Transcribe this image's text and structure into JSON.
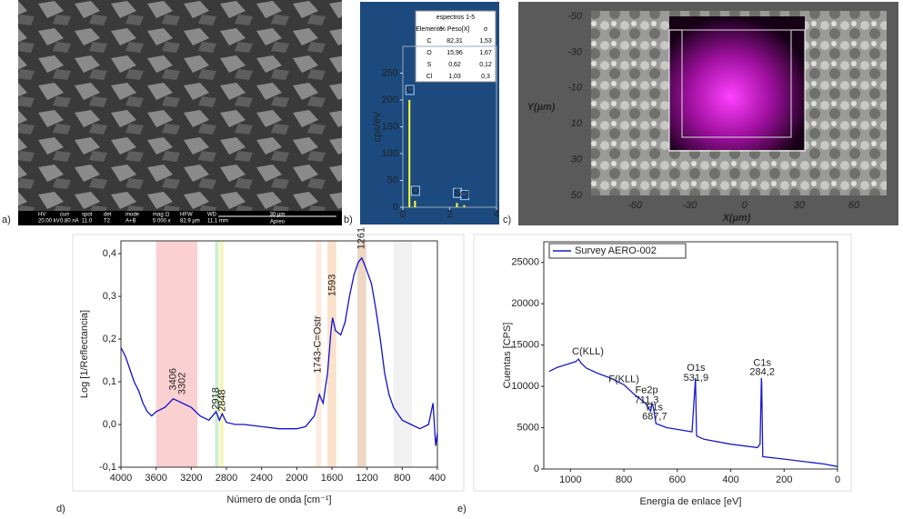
{
  "panels": [
    "a)",
    "b)",
    "c)",
    "d)",
    "e)"
  ],
  "sem": {
    "fields": [
      [
        "HV",
        "20.00 kV"
      ],
      [
        "curr",
        "0.80 nA"
      ],
      [
        "spot",
        "11.0"
      ],
      [
        "det",
        "T2"
      ],
      [
        "mode",
        "A+B"
      ],
      [
        "mag ⊡",
        "5 000 x"
      ],
      [
        "HFW",
        "82.9 µm"
      ],
      [
        "WD",
        "11.1 mm"
      ]
    ],
    "scale": "30 µm",
    "brand": "Apreo"
  },
  "eds": {
    "table_title": "espectros 1-5",
    "headers": [
      "Elemento",
      "% Peso[X]",
      "σ"
    ],
    "rows": [
      [
        "C",
        "82,31",
        "1,53"
      ],
      [
        "O",
        "15,96",
        "1,67"
      ],
      [
        "S",
        "0,62",
        "0,12"
      ],
      [
        "Cl",
        "1,03",
        "0,3"
      ]
    ]
  },
  "map": {
    "xlabel": "X(µm)",
    "ylabel": "Y(µm)",
    "xticks": [
      -60,
      -30,
      0,
      30,
      60
    ],
    "yticks": [
      -50,
      -30,
      -10,
      10,
      30,
      50
    ]
  },
  "chart_data": [
    {
      "type": "stem",
      "ylabel": "cps/eV",
      "x": [
        0.28,
        0.52,
        2.31,
        2.62
      ],
      "values": [
        200,
        12,
        8,
        4
      ],
      "point_labels": [
        "C",
        "O",
        "S",
        "Cl"
      ],
      "color": "#ffff33",
      "xlim": [
        0,
        4
      ],
      "ylim": [
        0,
        300
      ],
      "xticks": [
        0,
        2,
        4
      ],
      "yticks": [
        0,
        50,
        100,
        150,
        200,
        250
      ]
    },
    {
      "type": "line",
      "xlabel": "Número de onda  [cm⁻¹]",
      "ylabel": "Log  [1/Reflectancia]",
      "x": [
        4000,
        3950,
        3900,
        3850,
        3800,
        3750,
        3700,
        3650,
        3600,
        3500,
        3406,
        3350,
        3302,
        3200,
        3100,
        3000,
        2918,
        2880,
        2848,
        2800,
        2700,
        2600,
        2400,
        2200,
        2000,
        1900,
        1800,
        1743,
        1700,
        1650,
        1610,
        1593,
        1560,
        1500,
        1450,
        1400,
        1350,
        1300,
        1261,
        1220,
        1150,
        1100,
        1050,
        1000,
        950,
        900,
        800,
        700,
        600,
        500,
        450,
        420,
        400
      ],
      "series": [
        {
          "color": "#1010d0",
          "values": [
            0.18,
            0.16,
            0.13,
            0.1,
            0.08,
            0.05,
            0.03,
            0.02,
            0.03,
            0.04,
            0.06,
            0.055,
            0.05,
            0.04,
            0.02,
            0.01,
            0.03,
            0.01,
            0.025,
            0.005,
            0.0,
            0.0,
            -0.005,
            -0.01,
            -0.01,
            -0.005,
            0.02,
            0.07,
            0.05,
            0.12,
            0.22,
            0.25,
            0.22,
            0.21,
            0.24,
            0.3,
            0.35,
            0.38,
            0.39,
            0.37,
            0.33,
            0.27,
            0.2,
            0.12,
            0.07,
            0.04,
            0.01,
            0.0,
            -0.01,
            0.0,
            0.05,
            -0.05,
            -0.02
          ]
        }
      ],
      "bands": [
        {
          "range": [
            3600,
            3130
          ],
          "color": "#f9c4c4"
        },
        {
          "range": [
            2930,
            2890
          ],
          "color": "#bfe8c4"
        },
        {
          "range": [
            2880,
            2830
          ],
          "color": "#f6f4b0"
        },
        {
          "range": [
            1780,
            1720
          ],
          "color": "#fbe6d6"
        },
        {
          "range": [
            1650,
            1550
          ],
          "color": "#f7d9bd"
        },
        {
          "range": [
            1310,
            1210
          ],
          "color": "#e9cdb5"
        },
        {
          "range": [
            900,
            690
          ],
          "color": "#eeeeee"
        }
      ],
      "annotations": [
        "3406",
        "3302",
        "2918",
        "2848",
        "1743-C=Ostr",
        "1593",
        "1261"
      ],
      "xlim": [
        4000,
        400
      ],
      "ylim": [
        -0.1,
        0.43
      ],
      "xticks": [
        4000,
        3600,
        3200,
        2800,
        2400,
        2000,
        1600,
        1200,
        800,
        400
      ],
      "yticks": [
        {
          "value": -0.1,
          "label": "-0,1"
        },
        {
          "value": 0,
          "label": "0,0"
        },
        {
          "value": 0.1,
          "label": "0,1"
        },
        {
          "value": 0.2,
          "label": "0,2"
        },
        {
          "value": 0.3,
          "label": "0,3"
        },
        {
          "value": 0.4,
          "label": "0,4"
        }
      ]
    },
    {
      "type": "line",
      "xlabel": "Energía de enlace [eV]",
      "ylabel": "Cuentas [CPS]",
      "legend": "upper left",
      "x": [
        1080,
        1050,
        1000,
        980,
        970,
        960,
        940,
        900,
        850,
        800,
        760,
        720,
        711,
        700,
        695,
        688,
        680,
        640,
        600,
        545,
        532,
        528,
        500,
        400,
        300,
        290,
        285,
        284,
        280,
        200,
        100,
        50,
        0
      ],
      "series": [
        {
          "name": "Survey AERO-002",
          "color": "#1a1acc",
          "values": [
            11800,
            12300,
            12800,
            13000,
            13300,
            12800,
            12200,
            11600,
            11000,
            10200,
            9000,
            8000,
            7500,
            7000,
            8000,
            7200,
            5500,
            5000,
            4800,
            4500,
            11000,
            4000,
            3600,
            3000,
            2600,
            3000,
            11000,
            10500,
            1500,
            1200,
            800,
            600,
            300
          ]
        }
      ],
      "annotations": [
        "C(KLL)",
        "F(KLL)",
        "Fe2p",
        "711,3",
        "F1s",
        "687,7",
        "O1s",
        "531,9",
        "C1s",
        "284,2"
      ],
      "xlim": [
        1100,
        0
      ],
      "ylim": [
        0,
        27500
      ],
      "xticks": [
        1000,
        800,
        600,
        400,
        200,
        0
      ],
      "yticks": [
        0,
        5000,
        10000,
        15000,
        20000,
        25000
      ]
    }
  ]
}
